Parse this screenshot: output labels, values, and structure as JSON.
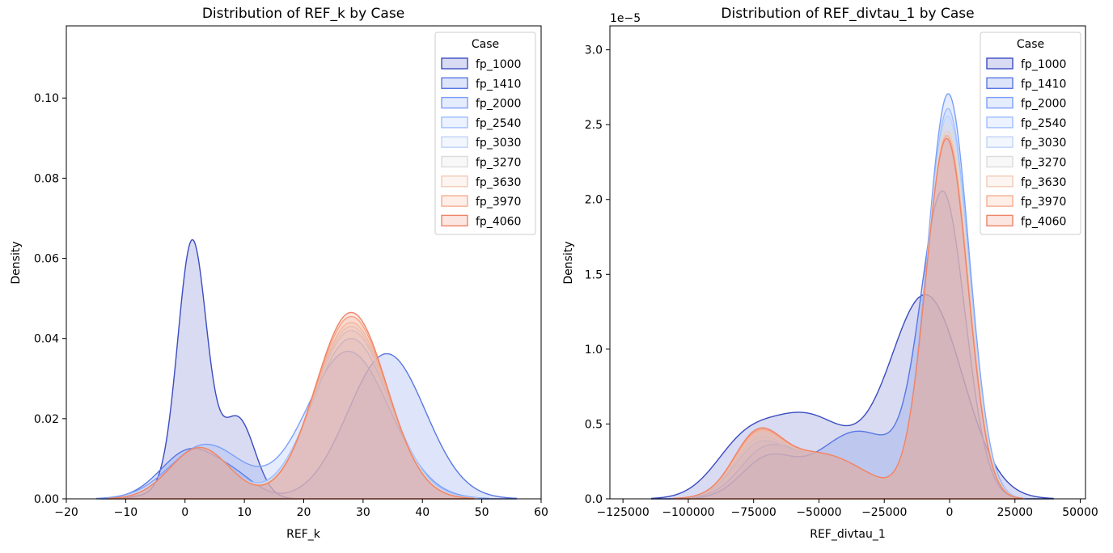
{
  "chart_data": [
    {
      "type": "area",
      "title": "Distribution of REF_k by Case",
      "xlabel": "REF_k",
      "ylabel": "Density",
      "xlim": [
        -20,
        60
      ],
      "ylim": [
        0,
        0.118
      ],
      "xticks": [
        -20,
        -10,
        0,
        10,
        20,
        30,
        40,
        50,
        60
      ],
      "xtick_labels": [
        "−20",
        "−10",
        "0",
        "10",
        "20",
        "30",
        "40",
        "50",
        "60"
      ],
      "yticks": [
        0.0,
        0.02,
        0.04,
        0.06,
        0.08,
        0.1
      ],
      "ytick_labels": [
        "0.00",
        "0.02",
        "0.04",
        "0.06",
        "0.08",
        "0.10"
      ],
      "grid": false,
      "legend": {
        "title": "Case",
        "placement": "top-right"
      },
      "series": [
        {
          "name": "fp_1000",
          "color": "#3b4cc0",
          "components": [
            [
              0.0595,
              1.2,
              2.4
            ],
            [
              0.0185,
              9.0,
              2.8
            ],
            [
              0.0048,
              1.8,
              5.0
            ]
          ]
        },
        {
          "name": "fp_1410",
          "color": "#5977e3",
          "components": [
            [
              0.0123,
              1.0,
              5.0
            ],
            [
              0.0035,
              9.0,
              3.5
            ],
            [
              0.0362,
              34.0,
              6.5
            ]
          ]
        },
        {
          "name": "fp_2000",
          "color": "#7b9ff9",
          "components": [
            [
              0.0135,
              3.5,
              6.0
            ],
            [
              0.0368,
              27.5,
              7.0
            ]
          ]
        },
        {
          "name": "fp_2540",
          "color": "#9ebeff",
          "components": [
            [
              0.0128,
              2.5,
              5.0
            ],
            [
              0.04,
              28.0,
              6.5
            ]
          ]
        },
        {
          "name": "fp_3030",
          "color": "#c0d4f5",
          "components": [
            [
              0.0128,
              2.5,
              5.0
            ],
            [
              0.042,
              28.0,
              6.3
            ]
          ]
        },
        {
          "name": "fp_3270",
          "color": "#dddcdc",
          "components": [
            [
              0.0128,
              2.5,
              5.0
            ],
            [
              0.043,
              28.0,
              6.2
            ]
          ]
        },
        {
          "name": "fp_3630",
          "color": "#f2cbb7",
          "components": [
            [
              0.0128,
              2.5,
              5.0
            ],
            [
              0.044,
              28.0,
              6.1
            ]
          ]
        },
        {
          "name": "fp_3970",
          "color": "#f7ac8e",
          "components": [
            [
              0.0128,
              2.5,
              5.0
            ],
            [
              0.0455,
              28.0,
              6.0
            ]
          ]
        },
        {
          "name": "fp_4060",
          "color": "#ee8468",
          "components": [
            [
              0.0128,
              2.5,
              5.0
            ],
            [
              0.0465,
              28.0,
              6.0
            ]
          ]
        }
      ]
    },
    {
      "type": "area",
      "title": "Distribution of REF_divtau_1 by Case",
      "xlabel": "REF_divtau_1",
      "ylabel": "Density",
      "scale_label": "1e−5",
      "xlim": [
        -130000,
        52000
      ],
      "ylim": [
        0,
        3.16e-05
      ],
      "xticks": [
        -125000,
        -100000,
        -75000,
        -50000,
        -25000,
        0,
        25000,
        50000
      ],
      "xtick_labels": [
        "−125000",
        "−100000",
        "−75000",
        "−50000",
        "−25000",
        "0",
        "25000",
        "50000"
      ],
      "yticks": [
        0.0,
        5e-06,
        1e-05,
        1.5e-05,
        2e-05,
        2.5e-05,
        3e-05
      ],
      "ytick_labels": [
        "0.0",
        "0.5",
        "1.0",
        "1.5",
        "2.0",
        "2.5",
        "3.0"
      ],
      "grid": false,
      "legend": {
        "title": "Case",
        "placement": "top-right"
      },
      "series": [
        {
          "name": "fp_1000",
          "color": "#3b4cc0",
          "components": [
            [
              1.35e-05,
              -9000,
              14000
            ],
            [
              5.5e-06,
              -55000,
              17000
            ],
            [
              2.5e-06,
              -80000,
              11000
            ]
          ]
        },
        {
          "name": "fp_1410",
          "color": "#5977e3",
          "components": [
            [
              2e-05,
              -2500,
              8500
            ],
            [
              4.5e-06,
              -35000,
              16000
            ],
            [
              2.5e-06,
              -70000,
              10000
            ]
          ]
        },
        {
          "name": "fp_2000",
          "color": "#7b9ff9",
          "components": [
            [
              2.7e-05,
              -500,
              8000
            ],
            [
              3e-06,
              -50000,
              18000
            ],
            [
              2e-06,
              -72000,
              9000
            ]
          ]
        },
        {
          "name": "fp_2540",
          "color": "#9ebeff",
          "components": [
            [
              2.6e-05,
              -600,
              8000
            ],
            [
              3e-06,
              -50000,
              18000
            ],
            [
              2.5e-06,
              -74000,
              9000
            ]
          ]
        },
        {
          "name": "fp_3030",
          "color": "#c0d4f5",
          "components": [
            [
              2.55e-05,
              -700,
              8000
            ],
            [
              3e-06,
              -50000,
              18000
            ],
            [
              2.8e-06,
              -74000,
              9000
            ]
          ]
        },
        {
          "name": "fp_3270",
          "color": "#dddcdc",
          "components": [
            [
              2.5e-05,
              -800,
              8000
            ],
            [
              3e-06,
              -50000,
              18000
            ],
            [
              3e-06,
              -74000,
              9000
            ]
          ]
        },
        {
          "name": "fp_3630",
          "color": "#f2cbb7",
          "components": [
            [
              2.45e-05,
              -900,
              8000
            ],
            [
              3e-06,
              -50000,
              18000
            ],
            [
              3.2e-06,
              -74000,
              9000
            ]
          ]
        },
        {
          "name": "fp_3970",
          "color": "#f7ac8e",
          "components": [
            [
              2.42e-05,
              -1000,
              8000
            ],
            [
              3e-06,
              -50000,
              18000
            ],
            [
              3.3e-06,
              -74000,
              9000
            ]
          ]
        },
        {
          "name": "fp_4060",
          "color": "#ee8468",
          "components": [
            [
              2.4e-05,
              -1100,
              8000
            ],
            [
              3e-06,
              -50000,
              18000
            ],
            [
              3.4e-06,
              -74000,
              9000
            ]
          ]
        }
      ]
    }
  ]
}
